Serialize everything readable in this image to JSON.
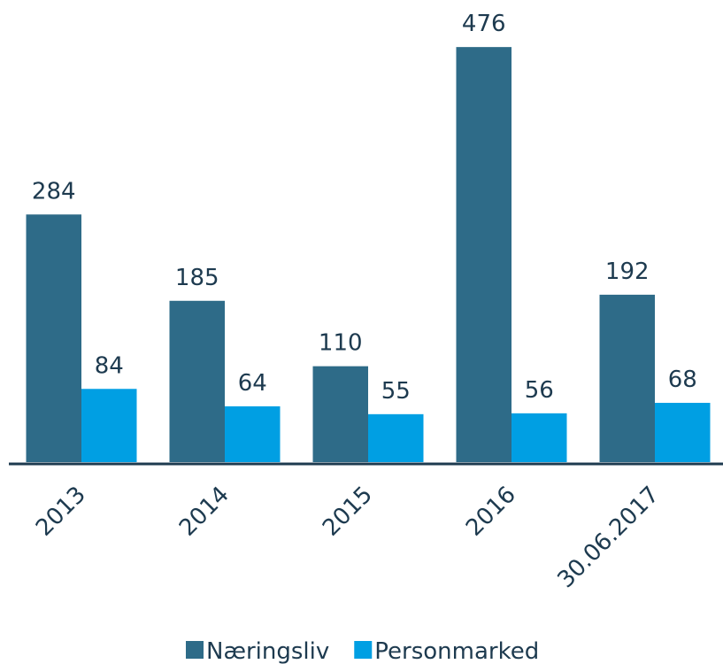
{
  "chart_data": {
    "type": "bar",
    "categories": [
      "2013",
      "2014",
      "2015",
      "2016",
      "30.06.2017"
    ],
    "series": [
      {
        "name": "Næringsliv",
        "color": "#2e6b88",
        "values": [
          284,
          185,
          110,
          476,
          192
        ]
      },
      {
        "name": "Personmarked",
        "color": "#009fe3",
        "values": [
          84,
          64,
          55,
          56,
          68
        ]
      }
    ],
    "ylim": [
      0,
      500
    ],
    "grid": false,
    "legend": "bottom"
  }
}
